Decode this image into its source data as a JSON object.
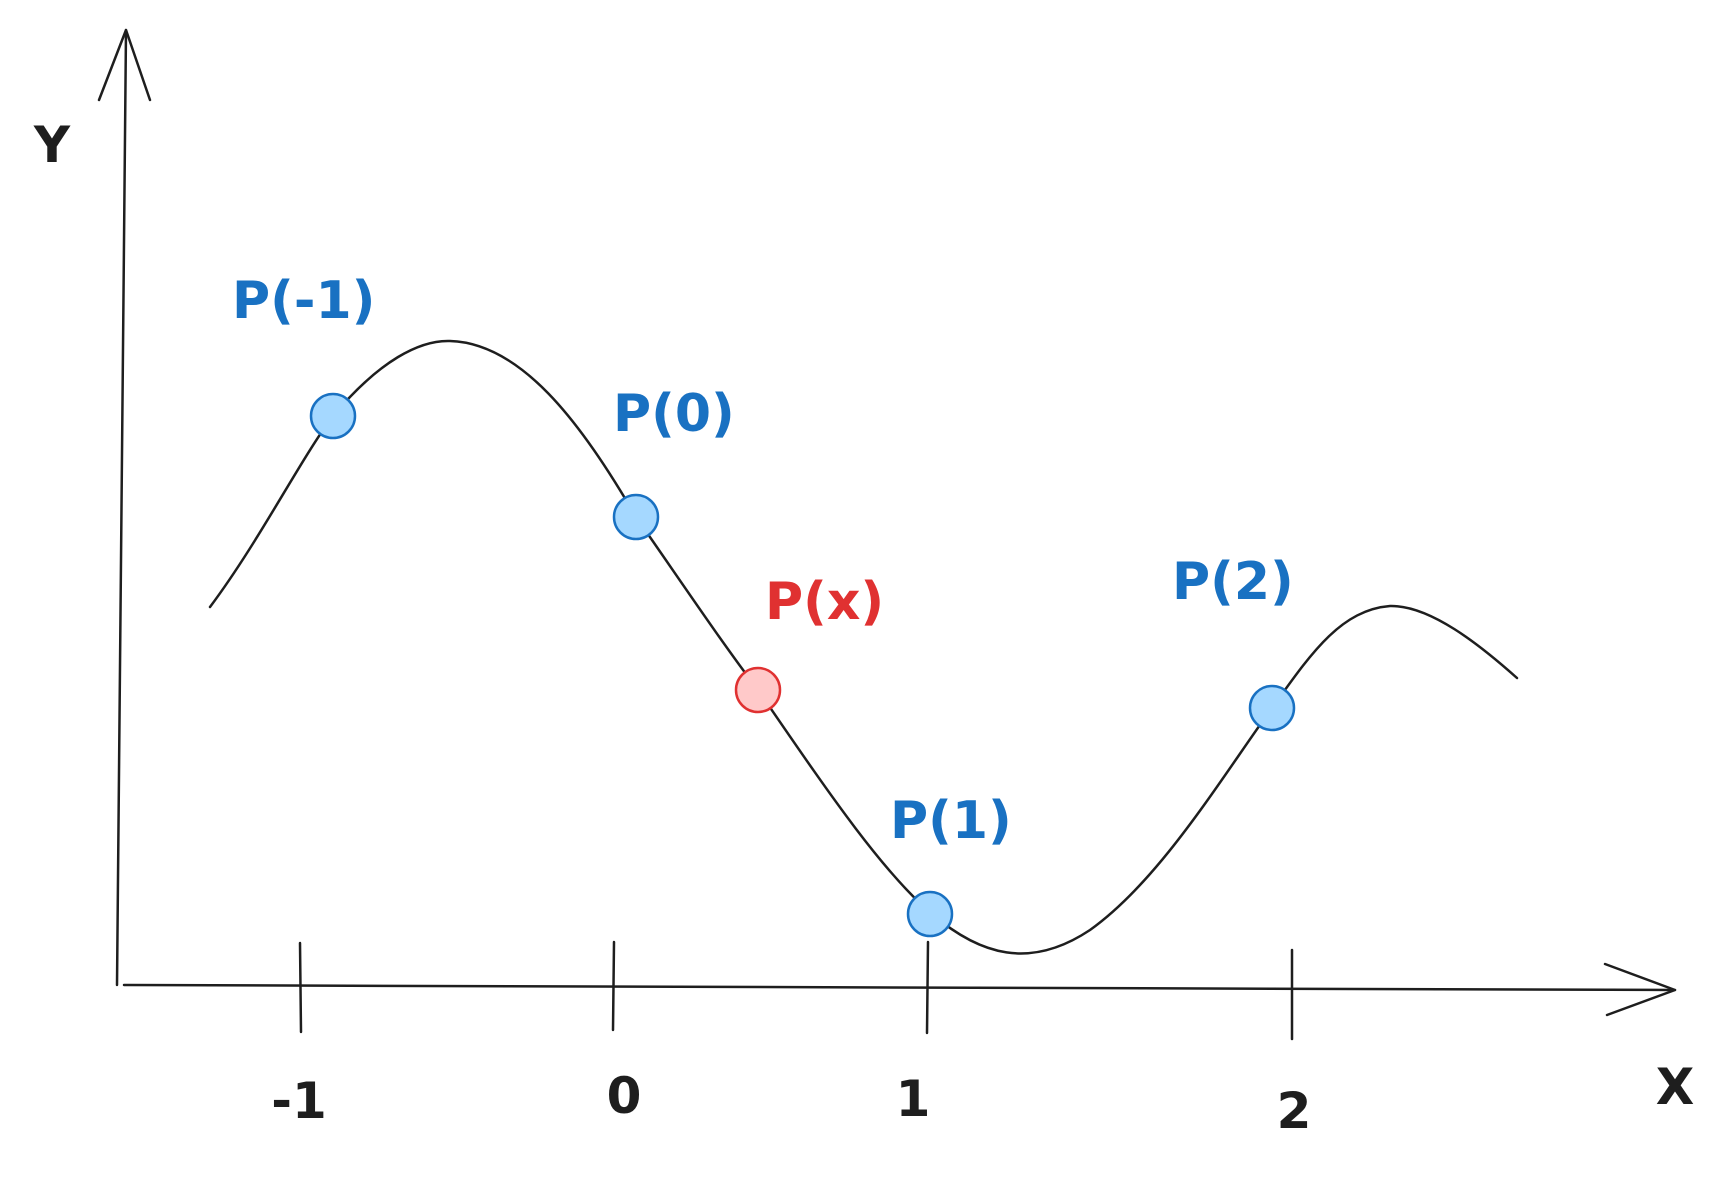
{
  "axes": {
    "x_label": "X",
    "y_label": "Y"
  },
  "ticks": [
    {
      "value": -1,
      "label": "-1"
    },
    {
      "value": 0,
      "label": "0"
    },
    {
      "value": 1,
      "label": "1"
    },
    {
      "value": 2,
      "label": "2"
    }
  ],
  "points": [
    {
      "id": "p-minus-1",
      "label": "P(-1)",
      "x": -1,
      "kind": "known"
    },
    {
      "id": "p-0",
      "label": "P(0)",
      "x": 0,
      "kind": "known"
    },
    {
      "id": "p-x",
      "label": "P(x)",
      "x": 0.4,
      "kind": "interpolated"
    },
    {
      "id": "p-1",
      "label": "P(1)",
      "x": 1,
      "kind": "known"
    },
    {
      "id": "p-2",
      "label": "P(2)",
      "x": 2,
      "kind": "known"
    }
  ],
  "colors": {
    "known_fill": "#a5d8ff",
    "known_stroke": "#1971c2",
    "known_text": "#1971c2",
    "interp_fill": "#ffc9c9",
    "interp_stroke": "#e03131",
    "interp_text": "#e03131",
    "ink": "#1e1e1e"
  }
}
